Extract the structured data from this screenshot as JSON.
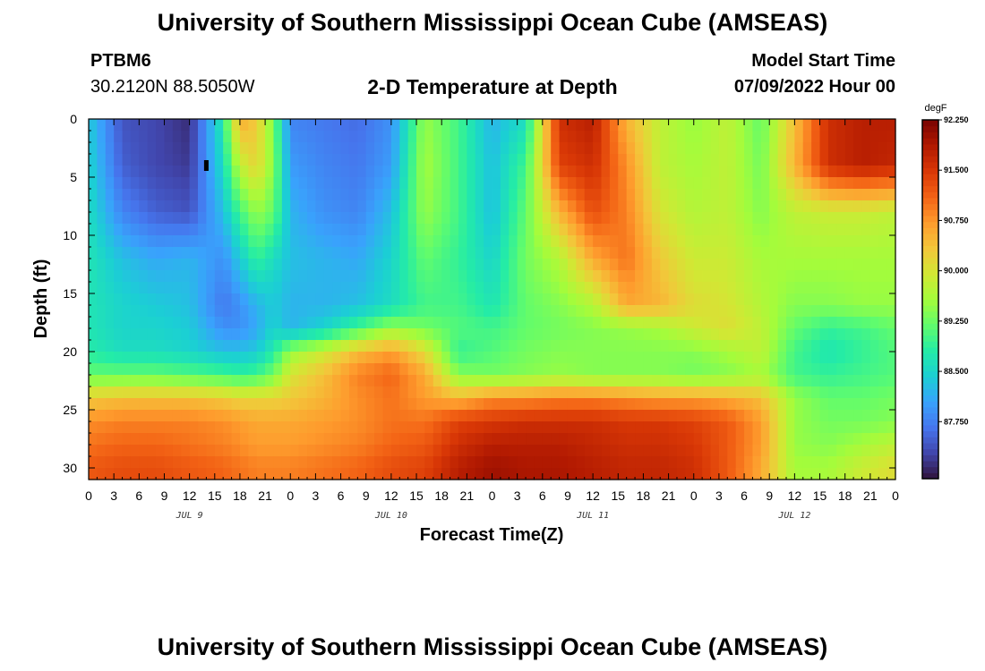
{
  "page": {
    "title": "University of Southern Mississippi Ocean Cube (AMSEAS)",
    "footer_title": "University of Southern Mississippi Ocean Cube (AMSEAS)",
    "station_id": "PTBM6",
    "station_coords": "30.2120N  88.5050W",
    "plot_title": "2-D Temperature at Depth",
    "model_start_label": "Model Start Time",
    "model_start_value": "07/09/2022 Hour 00"
  },
  "chart_data": {
    "type": "heatmap",
    "title": "2-D Temperature at Depth",
    "xlabel": "Forecast Time(Z)",
    "ylabel": "Depth (ft)",
    "units_label": "degF",
    "x_range_hours": [
      0,
      96
    ],
    "y_range_ft": [
      0,
      31
    ],
    "y_inverted": true,
    "x_tick_labels": [
      "0",
      "3",
      "6",
      "9",
      "12",
      "15",
      "18",
      "21",
      "0",
      "3",
      "6",
      "9",
      "12",
      "15",
      "18",
      "21",
      "0",
      "3",
      "6",
      "9",
      "12",
      "15",
      "18",
      "21",
      "0",
      "3",
      "6",
      "9",
      "12",
      "15",
      "18",
      "21",
      "0"
    ],
    "x_tick_hours": [
      0,
      3,
      6,
      9,
      12,
      15,
      18,
      21,
      24,
      27,
      30,
      33,
      36,
      39,
      42,
      45,
      48,
      51,
      54,
      57,
      60,
      63,
      66,
      69,
      72,
      75,
      78,
      81,
      84,
      87,
      90,
      93,
      96
    ],
    "y_ticks": [
      0,
      5,
      10,
      15,
      20,
      25,
      30
    ],
    "day_labels": [
      {
        "text": "JUL 9",
        "hour": 12
      },
      {
        "text": "JUL 10",
        "hour": 36
      },
      {
        "text": "JUL 11",
        "hour": 60
      },
      {
        "text": "JUL 12",
        "hour": 84
      }
    ],
    "colorbar": {
      "min": 86.9,
      "max": 92.25,
      "labels": [
        "92.250",
        "91.500",
        "90.750",
        "90.000",
        "89.250",
        "88.500",
        "87.750"
      ],
      "label_values": [
        92.25,
        91.5,
        90.75,
        90.0,
        89.25,
        88.5,
        87.75
      ],
      "colors": [
        "#30123b",
        "#4145ab",
        "#4675ed",
        "#39a2fc",
        "#1bcfd4",
        "#24eca6",
        "#61fc6c",
        "#a4fc3b",
        "#d1e834",
        "#f3c63a",
        "#fe9b2d",
        "#f36315",
        "#d93806",
        "#b11901",
        "#7a0402"
      ]
    },
    "grid": false,
    "legend": "colorbar-right",
    "marker": {
      "hour": 14,
      "depth_ft": 4
    },
    "time_hours": [
      0,
      4,
      8,
      12,
      16,
      18,
      20,
      22,
      24,
      28,
      32,
      36,
      40,
      44,
      48,
      52,
      56,
      60,
      64,
      68,
      72,
      76,
      80,
      84,
      88,
      92,
      96
    ],
    "depth_ft": [
      0,
      4,
      8,
      12,
      16,
      18,
      20,
      22,
      24,
      26,
      28,
      30,
      31
    ],
    "temperature_degF_by_depth": [
      [
        88.4,
        87.4,
        87.3,
        87.1,
        88.8,
        90.6,
        90.3,
        89.3,
        87.8,
        87.7,
        87.6,
        87.9,
        89.5,
        89.0,
        88.2,
        88.6,
        91.6,
        91.8,
        90.5,
        89.8,
        89.5,
        89.8,
        89.2,
        90.4,
        91.6,
        91.8,
        91.8
      ],
      [
        88.5,
        87.5,
        87.3,
        87.2,
        88.6,
        89.8,
        90.2,
        89.4,
        88.0,
        87.8,
        87.7,
        88.0,
        89.6,
        89.0,
        88.3,
        89.0,
        91.4,
        91.6,
        90.8,
        89.8,
        89.6,
        89.8,
        89.3,
        90.5,
        91.6,
        91.8,
        91.7
      ],
      [
        88.6,
        87.8,
        87.5,
        87.4,
        88.3,
        89.0,
        89.5,
        89.2,
        88.2,
        87.9,
        87.8,
        88.3,
        89.5,
        89.0,
        88.3,
        89.2,
        90.5,
        91.3,
        90.9,
        90.0,
        89.7,
        89.8,
        89.4,
        89.8,
        89.9,
        89.9,
        89.8
      ],
      [
        88.7,
        88.3,
        88.1,
        88.2,
        87.9,
        88.4,
        88.9,
        88.6,
        88.3,
        88.2,
        88.1,
        88.5,
        89.2,
        88.9,
        88.5,
        89.3,
        89.7,
        90.6,
        91.0,
        90.3,
        89.9,
        89.9,
        89.6,
        89.6,
        89.6,
        89.6,
        89.6
      ],
      [
        88.7,
        88.5,
        88.4,
        88.3,
        87.7,
        87.9,
        88.2,
        88.4,
        88.2,
        88.2,
        88.3,
        88.6,
        89.0,
        89.0,
        88.7,
        89.2,
        89.4,
        89.7,
        90.6,
        90.5,
        90.1,
        90.0,
        89.7,
        89.4,
        89.4,
        89.5,
        89.5
      ],
      [
        88.7,
        88.5,
        88.5,
        88.4,
        87.9,
        87.9,
        88.1,
        88.5,
        88.2,
        88.5,
        89.0,
        89.5,
        89.3,
        89.1,
        89.0,
        89.2,
        89.3,
        89.4,
        89.5,
        89.6,
        89.9,
        90.1,
        89.8,
        89.2,
        88.9,
        89.0,
        89.2
      ],
      [
        88.8,
        88.6,
        88.6,
        88.5,
        88.3,
        88.3,
        88.4,
        88.8,
        89.5,
        89.9,
        90.4,
        90.7,
        90.1,
        88.9,
        89.1,
        89.3,
        89.4,
        89.4,
        89.4,
        89.4,
        89.4,
        89.6,
        89.8,
        89.0,
        88.7,
        88.9,
        89.1
      ],
      [
        89.2,
        89.2,
        89.2,
        89.1,
        89.0,
        88.9,
        89.0,
        89.3,
        90.0,
        90.4,
        90.9,
        91.1,
        90.6,
        89.4,
        89.3,
        89.4,
        89.5,
        89.4,
        89.4,
        89.4,
        89.3,
        89.4,
        89.6,
        89.0,
        88.9,
        89.0,
        89.1
      ],
      [
        90.3,
        90.4,
        90.4,
        90.4,
        90.3,
        90.2,
        90.2,
        90.2,
        90.3,
        90.5,
        90.8,
        91.0,
        90.7,
        90.5,
        90.8,
        90.8,
        90.9,
        90.9,
        90.8,
        90.7,
        90.7,
        90.6,
        90.4,
        89.5,
        89.2,
        89.2,
        89.3
      ],
      [
        90.8,
        90.9,
        90.9,
        90.9,
        90.8,
        90.7,
        90.6,
        90.6,
        90.6,
        90.7,
        90.8,
        91.0,
        91.0,
        91.4,
        91.5,
        91.6,
        91.6,
        91.6,
        91.5,
        91.5,
        91.4,
        91.2,
        90.7,
        89.5,
        89.3,
        89.3,
        89.4
      ],
      [
        91.0,
        91.1,
        91.1,
        91.0,
        90.9,
        90.8,
        90.7,
        90.7,
        90.7,
        90.8,
        90.9,
        91.1,
        91.2,
        91.6,
        91.8,
        91.8,
        91.8,
        91.7,
        91.6,
        91.6,
        91.5,
        91.2,
        90.7,
        89.5,
        89.4,
        89.6,
        89.8
      ],
      [
        91.2,
        91.3,
        91.3,
        91.2,
        91.1,
        91.0,
        90.9,
        90.9,
        90.9,
        91.0,
        91.1,
        91.3,
        91.4,
        91.8,
        92.0,
        91.9,
        91.9,
        91.8,
        91.7,
        91.7,
        91.6,
        91.2,
        90.6,
        89.6,
        89.6,
        89.9,
        90.1
      ],
      [
        91.2,
        91.3,
        91.3,
        91.2,
        91.1,
        91.0,
        90.9,
        90.9,
        90.9,
        91.0,
        91.1,
        91.3,
        91.4,
        91.8,
        92.0,
        91.9,
        91.9,
        91.8,
        91.7,
        91.7,
        91.6,
        91.2,
        90.6,
        89.6,
        89.6,
        89.9,
        90.1
      ]
    ]
  }
}
